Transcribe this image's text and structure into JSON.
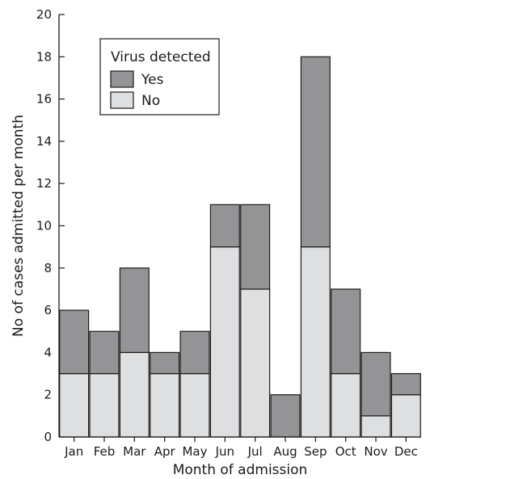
{
  "chart_data": {
    "type": "bar",
    "stacked": true,
    "categories": [
      "Jan",
      "Feb",
      "Mar",
      "Apr",
      "May",
      "Jun",
      "Jul",
      "Aug",
      "Sep",
      "Oct",
      "Nov",
      "Dec"
    ],
    "series": [
      {
        "name": "No",
        "color": "#dedfe1",
        "values": [
          3,
          3,
          4,
          3,
          3,
          9,
          7,
          0,
          9,
          3,
          1,
          2
        ]
      },
      {
        "name": "Yes",
        "color": "#949497",
        "values": [
          3,
          2,
          4,
          1,
          2,
          2,
          4,
          2,
          9,
          4,
          3,
          1
        ]
      }
    ],
    "xlabel": "Month of admission",
    "ylabel": "No of cases admitted per month",
    "ylim": [
      0,
      20
    ],
    "yticks": [
      0,
      2,
      4,
      6,
      8,
      10,
      12,
      14,
      16,
      18,
      20
    ],
    "legend": {
      "title": "Virus detected",
      "items": [
        {
          "label": "Yes",
          "color": "#949497"
        },
        {
          "label": "No",
          "color": "#dedfe1"
        }
      ],
      "position": "top-left"
    },
    "grid": false
  }
}
